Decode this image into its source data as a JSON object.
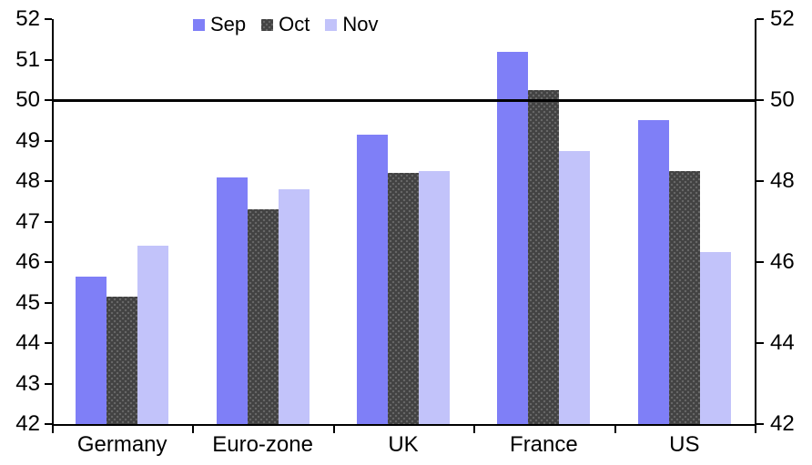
{
  "chart_data": {
    "type": "bar",
    "title": "",
    "categories": [
      "Germany",
      "Euro-zone",
      "UK",
      "France",
      "US"
    ],
    "series": [
      {
        "name": "Sep",
        "color": "#7f7ff7",
        "pattern": "solid",
        "values": [
          45.65,
          48.1,
          49.15,
          51.2,
          49.5
        ]
      },
      {
        "name": "Oct",
        "color": "#424242",
        "pattern": "dots",
        "values": [
          45.15,
          47.3,
          48.2,
          50.25,
          48.25
        ]
      },
      {
        "name": "Nov",
        "color": "#c2c3fa",
        "pattern": "solid",
        "values": [
          46.4,
          47.8,
          48.25,
          48.75,
          46.25
        ]
      }
    ],
    "ylim": [
      42,
      52
    ],
    "y_ticks_left": [
      42,
      43,
      44,
      45,
      46,
      47,
      48,
      49,
      50,
      51,
      52
    ],
    "y_ticks_right": [
      42,
      44,
      46,
      48,
      50,
      52
    ],
    "reference_line": 50,
    "legend_position": "top",
    "grid": false,
    "axis_color": "#000000",
    "xlabel": "",
    "ylabel": ""
  }
}
